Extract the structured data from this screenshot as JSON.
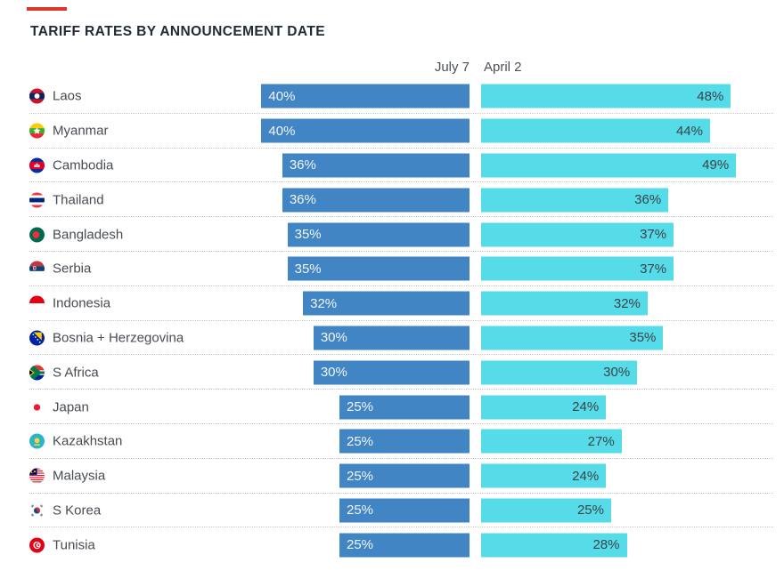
{
  "title": "TARIFF RATES BY ANNOUNCEMENT DATE",
  "columns": {
    "july": "July 7",
    "april": "April 2"
  },
  "colors": {
    "july_bar": "#4285c4",
    "april_bar": "#56dce8",
    "accent_red": "#e0332c",
    "title_text": "#202b36",
    "label_text": "#474c52",
    "july_value_text": "#f0f5fa",
    "april_value_text": "#3a4249",
    "separator": "#cbcbcb"
  },
  "rows": [
    {
      "country": "Laos",
      "flag": "laos",
      "flag_icon": "laos-flag-icon",
      "july": 40,
      "april": 48,
      "july_label": "40%",
      "april_label": "48%"
    },
    {
      "country": "Myanmar",
      "flag": "myanmar",
      "flag_icon": "myanmar-flag-icon",
      "july": 40,
      "april": 44,
      "july_label": "40%",
      "april_label": "44%"
    },
    {
      "country": "Cambodia",
      "flag": "cambodia",
      "flag_icon": "cambodia-flag-icon",
      "july": 36,
      "april": 49,
      "july_label": "36%",
      "april_label": "49%"
    },
    {
      "country": "Thailand",
      "flag": "thailand",
      "flag_icon": "thailand-flag-icon",
      "july": 36,
      "april": 36,
      "july_label": "36%",
      "april_label": "36%"
    },
    {
      "country": "Bangladesh",
      "flag": "bangladesh",
      "flag_icon": "bangladesh-flag-icon",
      "july": 35,
      "april": 37,
      "july_label": "35%",
      "april_label": "37%"
    },
    {
      "country": "Serbia",
      "flag": "serbia",
      "flag_icon": "serbia-flag-icon",
      "july": 35,
      "april": 37,
      "july_label": "35%",
      "april_label": "37%"
    },
    {
      "country": "Indonesia",
      "flag": "indonesia",
      "flag_icon": "indonesia-flag-icon",
      "july": 32,
      "april": 32,
      "july_label": "32%",
      "april_label": "32%"
    },
    {
      "country": "Bosnia + Herzegovina",
      "flag": "bosnia",
      "flag_icon": "bosnia-flag-icon",
      "july": 30,
      "april": 35,
      "july_label": "30%",
      "april_label": "35%"
    },
    {
      "country": "S Africa",
      "flag": "south-africa",
      "flag_icon": "south-africa-flag-icon",
      "july": 30,
      "april": 30,
      "july_label": "30%",
      "april_label": "30%"
    },
    {
      "country": "Japan",
      "flag": "japan",
      "flag_icon": "japan-flag-icon",
      "july": 25,
      "april": 24,
      "july_label": "25%",
      "april_label": "24%"
    },
    {
      "country": "Kazakhstan",
      "flag": "kazakhstan",
      "flag_icon": "kazakhstan-flag-icon",
      "july": 25,
      "april": 27,
      "july_label": "25%",
      "april_label": "27%"
    },
    {
      "country": "Malaysia",
      "flag": "malaysia",
      "flag_icon": "malaysia-flag-icon",
      "july": 25,
      "april": 24,
      "july_label": "25%",
      "april_label": "24%"
    },
    {
      "country": "S Korea",
      "flag": "south-korea",
      "flag_icon": "south-korea-flag-icon",
      "july": 25,
      "april": 25,
      "july_label": "25%",
      "april_label": "25%"
    },
    {
      "country": "Tunisia",
      "flag": "tunisia",
      "flag_icon": "tunisia-flag-icon",
      "july": 25,
      "april": 28,
      "july_label": "25%",
      "april_label": "28%"
    }
  ],
  "chart_data": {
    "type": "bar",
    "orientation": "horizontal",
    "title": "TARIFF RATES BY ANNOUNCEMENT DATE",
    "categories": [
      "Laos",
      "Myanmar",
      "Cambodia",
      "Thailand",
      "Bangladesh",
      "Serbia",
      "Indonesia",
      "Bosnia + Herzegovina",
      "S Africa",
      "Japan",
      "Kazakhstan",
      "Malaysia",
      "S Korea",
      "Tunisia"
    ],
    "series": [
      {
        "name": "July 7",
        "values": [
          40,
          40,
          36,
          36,
          35,
          35,
          32,
          30,
          30,
          25,
          25,
          25,
          25,
          25
        ]
      },
      {
        "name": "April 2",
        "values": [
          48,
          44,
          49,
          36,
          37,
          37,
          32,
          35,
          30,
          24,
          27,
          24,
          25,
          28
        ]
      }
    ],
    "unit": "%",
    "value_range": [
      0,
      49
    ],
    "xlabel": "",
    "ylabel": "",
    "grid": false,
    "legend_position": "top",
    "data_labels": "inside-bar"
  }
}
